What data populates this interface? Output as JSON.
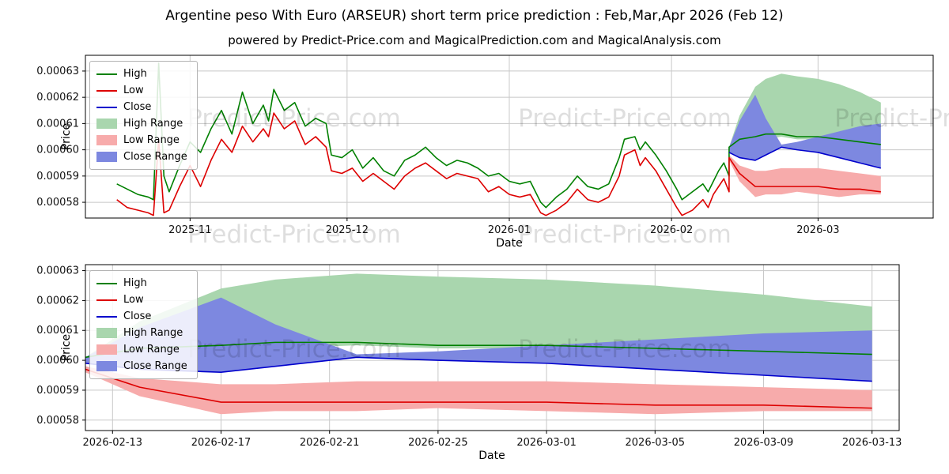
{
  "title": "Argentine peso With Euro (ARSEUR) short term price prediction : Feb,Mar,Apr 2026 (Feb 12)",
  "subtitle": "powered by Predict-Price.com and MagicalPrediction.com and MagicalAnalysis.com",
  "watermark_text": "Predict-Price.com",
  "colors": {
    "high": "#008000",
    "low": "#dd0000",
    "close": "#0000cc",
    "high_range": "#a9d6ae",
    "low_range": "#f7abab",
    "close_range": "#7d88e0",
    "grid": "#c8c8c8",
    "axis": "#000000"
  },
  "legend": [
    {
      "label": "High",
      "swatch": "line",
      "color": "high"
    },
    {
      "label": "Low",
      "swatch": "line",
      "color": "low"
    },
    {
      "label": "Close",
      "swatch": "line",
      "color": "close"
    },
    {
      "label": "High Range",
      "swatch": "patch",
      "color": "high_range"
    },
    {
      "label": "Low Range",
      "swatch": "patch",
      "color": "low_range"
    },
    {
      "label": "Close Range",
      "swatch": "patch",
      "color": "close_range"
    }
  ],
  "chart_data": [
    {
      "type": "line",
      "name": "history-with-forecast",
      "xlabel": "Date",
      "ylabel": "Price",
      "ylim": [
        0.000574,
        0.000636
      ],
      "yticks": [
        {
          "value": 0.00058,
          "label": "0.00058"
        },
        {
          "value": 0.00059,
          "label": "0.00059"
        },
        {
          "value": 0.0006,
          "label": "0.00060"
        },
        {
          "value": 0.00061,
          "label": "0.00061"
        },
        {
          "value": 0.00062,
          "label": "0.00062"
        },
        {
          "value": 0.00063,
          "label": "0.00063"
        }
      ],
      "xlim": [
        "2025-10-12",
        "2026-03-23"
      ],
      "xticks": [
        {
          "date": "2025-11-01",
          "label": "2025-11"
        },
        {
          "date": "2025-12-01",
          "label": "2025-12"
        },
        {
          "date": "2026-01-01",
          "label": "2026-01"
        },
        {
          "date": "2026-02-01",
          "label": "2026-02"
        },
        {
          "date": "2026-03-01",
          "label": "2026-03"
        }
      ],
      "history": {
        "dates": [
          "2025-10-18",
          "2025-10-20",
          "2025-10-22",
          "2025-10-24",
          "2025-10-25",
          "2025-10-26",
          "2025-10-27",
          "2025-10-28",
          "2025-10-30",
          "2025-11-01",
          "2025-11-03",
          "2025-11-05",
          "2025-11-07",
          "2025-11-09",
          "2025-11-11",
          "2025-11-13",
          "2025-11-15",
          "2025-11-16",
          "2025-11-17",
          "2025-11-19",
          "2025-11-21",
          "2025-11-23",
          "2025-11-25",
          "2025-11-27",
          "2025-11-28",
          "2025-11-30",
          "2025-12-02",
          "2025-12-04",
          "2025-12-06",
          "2025-12-08",
          "2025-12-10",
          "2025-12-12",
          "2025-12-14",
          "2025-12-16",
          "2025-12-18",
          "2025-12-20",
          "2025-12-22",
          "2025-12-24",
          "2025-12-26",
          "2025-12-28",
          "2025-12-30",
          "2026-01-01",
          "2026-01-03",
          "2026-01-05",
          "2026-01-07",
          "2026-01-08",
          "2026-01-10",
          "2026-01-12",
          "2026-01-14",
          "2026-01-16",
          "2026-01-18",
          "2026-01-20",
          "2026-01-22",
          "2026-01-23",
          "2026-01-25",
          "2026-01-26",
          "2026-01-27",
          "2026-01-29",
          "2026-01-31",
          "2026-02-02",
          "2026-02-03",
          "2026-02-05",
          "2026-02-07",
          "2026-02-08",
          "2026-02-09",
          "2026-02-10",
          "2026-02-11",
          "2026-02-12"
        ],
        "high": [
          0.000587,
          0.000585,
          0.000583,
          0.000582,
          0.000581,
          0.000633,
          0.00059,
          0.000584,
          0.000594,
          0.000603,
          0.000599,
          0.000608,
          0.000615,
          0.000606,
          0.000622,
          0.00061,
          0.000617,
          0.000611,
          0.000623,
          0.000615,
          0.000618,
          0.000609,
          0.000612,
          0.00061,
          0.000598,
          0.000597,
          0.0006,
          0.000593,
          0.000597,
          0.000592,
          0.00059,
          0.000596,
          0.000598,
          0.000601,
          0.000597,
          0.000594,
          0.000596,
          0.000595,
          0.000593,
          0.00059,
          0.000591,
          0.000588,
          0.000587,
          0.000588,
          0.00058,
          0.000578,
          0.000582,
          0.000585,
          0.00059,
          0.000586,
          0.000585,
          0.000587,
          0.000597,
          0.000604,
          0.000605,
          0.0006,
          0.000603,
          0.000598,
          0.000592,
          0.000585,
          0.000581,
          0.000584,
          0.000587,
          0.000584,
          0.000588,
          0.000592,
          0.000595,
          0.00059
        ],
        "low": [
          0.000581,
          0.000578,
          0.000577,
          0.000576,
          0.000575,
          0.000604,
          0.000576,
          0.000577,
          0.000586,
          0.000594,
          0.000586,
          0.000596,
          0.000604,
          0.000599,
          0.000609,
          0.000603,
          0.000608,
          0.000605,
          0.000614,
          0.000608,
          0.000611,
          0.000602,
          0.000605,
          0.000601,
          0.000592,
          0.000591,
          0.000593,
          0.000588,
          0.000591,
          0.000588,
          0.000585,
          0.00059,
          0.000593,
          0.000595,
          0.000592,
          0.000589,
          0.000591,
          0.00059,
          0.000589,
          0.000584,
          0.000586,
          0.000583,
          0.000582,
          0.000583,
          0.000576,
          0.000575,
          0.000577,
          0.00058,
          0.000585,
          0.000581,
          0.00058,
          0.000582,
          0.00059,
          0.000598,
          0.0006,
          0.000594,
          0.000597,
          0.000592,
          0.000585,
          0.000578,
          0.000575,
          0.000577,
          0.000581,
          0.000578,
          0.000583,
          0.000586,
          0.000589,
          0.000584
        ]
      },
      "forecast": {
        "dates": [
          "2026-02-12",
          "2026-02-14",
          "2026-02-17",
          "2026-02-19",
          "2026-02-22",
          "2026-02-25",
          "2026-03-01",
          "2026-03-05",
          "2026-03-09",
          "2026-03-13"
        ],
        "high": [
          0.000601,
          0.000604,
          0.000605,
          0.000606,
          0.000606,
          0.000605,
          0.000605,
          0.000604,
          0.000603,
          0.000602
        ],
        "low": [
          0.000597,
          0.000591,
          0.000586,
          0.000586,
          0.000586,
          0.000586,
          0.000586,
          0.000585,
          0.000585,
          0.000584
        ],
        "close": [
          0.000599,
          0.000597,
          0.000596,
          0.000598,
          0.000601,
          0.0006,
          0.000599,
          0.000597,
          0.000595,
          0.000593
        ],
        "high_range": {
          "upper": [
            0.000601,
            0.000613,
            0.000624,
            0.000627,
            0.000629,
            0.000628,
            0.000627,
            0.000625,
            0.000622,
            0.000618
          ],
          "lower": [
            0.000599,
            0.000601,
            0.000603,
            0.000604,
            0.000605,
            0.000604,
            0.000604,
            0.000604,
            0.000604,
            0.000603
          ]
        },
        "low_range": {
          "upper": [
            0.000598,
            0.000594,
            0.000592,
            0.000592,
            0.000593,
            0.000593,
            0.000593,
            0.000592,
            0.000591,
            0.00059
          ],
          "lower": [
            0.000596,
            0.000588,
            0.000582,
            0.000583,
            0.000583,
            0.000584,
            0.000583,
            0.000582,
            0.000583,
            0.000583
          ]
        },
        "close_range": {
          "upper": [
            0.000601,
            0.000611,
            0.000621,
            0.000612,
            0.000602,
            0.000603,
            0.000605,
            0.000607,
            0.000609,
            0.00061
          ],
          "lower": [
            0.000599,
            0.000597,
            0.000596,
            0.000598,
            0.000601,
            0.0006,
            0.000599,
            0.000597,
            0.000595,
            0.000593
          ]
        }
      }
    },
    {
      "type": "line",
      "name": "forecast-detail",
      "xlabel": "Date",
      "ylabel": "Price",
      "ylim": [
        0.0005765,
        0.000632
      ],
      "yticks": [
        {
          "value": 0.00058,
          "label": "0.00058"
        },
        {
          "value": 0.00059,
          "label": "0.00059"
        },
        {
          "value": 0.0006,
          "label": "0.00060"
        },
        {
          "value": 0.00061,
          "label": "0.00061"
        },
        {
          "value": 0.00062,
          "label": "0.00062"
        },
        {
          "value": 0.00063,
          "label": "0.00063"
        }
      ],
      "xlim": [
        "2026-02-12",
        "2026-03-14"
      ],
      "xticks": [
        {
          "date": "2026-02-13",
          "label": "2026-02-13"
        },
        {
          "date": "2026-02-17",
          "label": "2026-02-17"
        },
        {
          "date": "2026-02-21",
          "label": "2026-02-21"
        },
        {
          "date": "2026-02-25",
          "label": "2026-02-25"
        },
        {
          "date": "2026-03-01",
          "label": "2026-03-01"
        },
        {
          "date": "2026-03-05",
          "label": "2026-03-05"
        },
        {
          "date": "2026-03-09",
          "label": "2026-03-09"
        },
        {
          "date": "2026-03-13",
          "label": "2026-03-13"
        }
      ],
      "forecast": {
        "dates": [
          "2026-02-12",
          "2026-02-14",
          "2026-02-17",
          "2026-02-19",
          "2026-02-22",
          "2026-02-25",
          "2026-03-01",
          "2026-03-05",
          "2026-03-09",
          "2026-03-13"
        ],
        "high": [
          0.000601,
          0.000604,
          0.000605,
          0.000606,
          0.000606,
          0.000605,
          0.000605,
          0.000604,
          0.000603,
          0.000602
        ],
        "low": [
          0.000597,
          0.000591,
          0.000586,
          0.000586,
          0.000586,
          0.000586,
          0.000586,
          0.000585,
          0.000585,
          0.000584
        ],
        "close": [
          0.000599,
          0.000597,
          0.000596,
          0.000598,
          0.000601,
          0.0006,
          0.000599,
          0.000597,
          0.000595,
          0.000593
        ],
        "high_range": {
          "upper": [
            0.000601,
            0.000613,
            0.000624,
            0.000627,
            0.000629,
            0.000628,
            0.000627,
            0.000625,
            0.000622,
            0.000618
          ],
          "lower": [
            0.000599,
            0.000601,
            0.000603,
            0.000604,
            0.000605,
            0.000604,
            0.000604,
            0.000604,
            0.000604,
            0.000603
          ]
        },
        "low_range": {
          "upper": [
            0.000598,
            0.000594,
            0.000592,
            0.000592,
            0.000593,
            0.000593,
            0.000593,
            0.000592,
            0.000591,
            0.00059
          ],
          "lower": [
            0.000596,
            0.000588,
            0.000582,
            0.000583,
            0.000583,
            0.000584,
            0.000583,
            0.000582,
            0.000583,
            0.000583
          ]
        },
        "close_range": {
          "upper": [
            0.000601,
            0.000611,
            0.000621,
            0.000612,
            0.000602,
            0.000603,
            0.000605,
            0.000607,
            0.000609,
            0.00061
          ],
          "lower": [
            0.000599,
            0.000597,
            0.000596,
            0.000598,
            0.000601,
            0.0006,
            0.000599,
            0.000597,
            0.000595,
            0.000593
          ]
        }
      }
    }
  ]
}
